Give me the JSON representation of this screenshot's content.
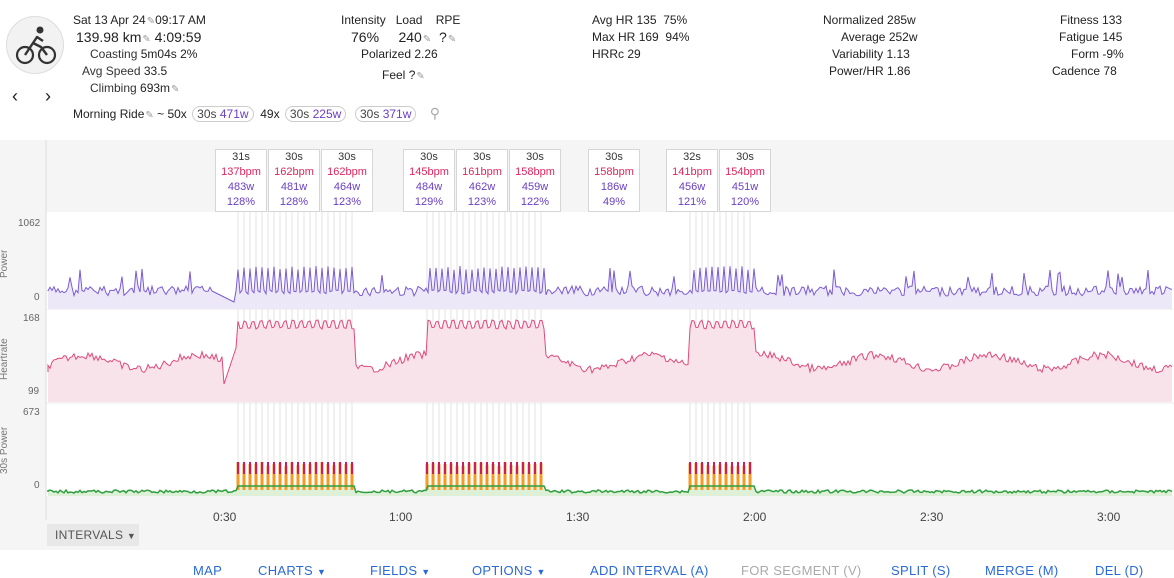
{
  "activity": {
    "date": "Sat 13 Apr 24",
    "time": "09:17 AM",
    "distance": "139.98 km",
    "duration": "4:09:59",
    "coasting_label": "Coasting",
    "coasting_value": "5m04s",
    "coasting_pct": "2%",
    "avg_speed_label": "Avg Speed",
    "avg_speed_value": "33.5",
    "climbing_label": "Climbing",
    "climbing_value": "693m",
    "name": "Morning Ride",
    "summary_prefix": "~ 50x",
    "summary_tag1_dur": "30s",
    "summary_tag1_w": "471w",
    "summary_mid": "49x",
    "summary_tag2_dur": "30s",
    "summary_tag2_w": "225w",
    "summary_tag3_dur": "30s",
    "summary_tag3_w": "371w"
  },
  "load": {
    "intensity_label": "Intensity",
    "load_label": "Load",
    "rpe_label": "RPE",
    "intensity_value": "76%",
    "load_value": "240",
    "rpe_value": "?",
    "polarized_label": "Polarized",
    "polarized_value": "2.26",
    "feel_label": "Feel",
    "feel_value": "?"
  },
  "hr": {
    "avg_label": "Avg HR",
    "avg_value": "135",
    "avg_pct": "75%",
    "max_label": "Max HR",
    "max_value": "169",
    "max_pct": "94%",
    "hrrc_label": "HRRc",
    "hrrc_value": "29"
  },
  "power": {
    "normalized_label": "Normalized",
    "normalized_value": "285w",
    "average_label": "Average",
    "average_value": "252w",
    "variability_label": "Variability",
    "variability_value": "1.13",
    "powerhr_label": "Power/HR",
    "powerhr_value": "1.86"
  },
  "fitness": {
    "fitness_label": "Fitness",
    "fitness_value": "133",
    "fatigue_label": "Fatigue",
    "fatigue_value": "145",
    "form_label": "Form",
    "form_value": "-9%",
    "cadence_label": "Cadence",
    "cadence_value": "78"
  },
  "interval_popups": [
    {
      "dur": "31s",
      "hr": "137bpm",
      "w": "483w",
      "pct": "128%"
    },
    {
      "dur": "30s",
      "hr": "162bpm",
      "w": "481w",
      "pct": "128%"
    },
    {
      "dur": "30s",
      "hr": "162bpm",
      "w": "464w",
      "pct": "123%"
    },
    {
      "dur": "30s",
      "hr": "145bpm",
      "w": "484w",
      "pct": "129%"
    },
    {
      "dur": "30s",
      "hr": "161bpm",
      "w": "462w",
      "pct": "123%"
    },
    {
      "dur": "30s",
      "hr": "158bpm",
      "w": "459w",
      "pct": "122%"
    },
    {
      "dur": "30s",
      "hr": "158bpm",
      "w": "186w",
      "pct": "49%"
    },
    {
      "dur": "32s",
      "hr": "141bpm",
      "w": "456w",
      "pct": "121%"
    },
    {
      "dur": "30s",
      "hr": "154bpm",
      "w": "451w",
      "pct": "120%"
    }
  ],
  "charts": {
    "power_label": "Power",
    "power_max": "1062",
    "power_min": "0",
    "hr_label": "Heartrate",
    "hr_max": "168",
    "hr_min": "99",
    "p30_label": "30s Power",
    "p30_max": "673",
    "p30_min": "0",
    "x_ticks": [
      "0:30",
      "1:00",
      "1:30",
      "2:00",
      "2:30",
      "3:00"
    ],
    "colors": {
      "power": "#7b5bd6",
      "hr": "#e04a7a",
      "p30_green": "#2e9e3e",
      "p30_orange": "#f59a22"
    }
  },
  "intervals_label": "INTERVALS",
  "toolbar": {
    "map": "MAP",
    "charts": "CHARTS",
    "fields": "FIELDS",
    "options": "OPTIONS",
    "add_interval": "ADD INTERVAL (A)",
    "for_segment": "FOR SEGMENT (V)",
    "split": "SPLIT (S)",
    "merge": "MERGE (M)",
    "del": "DEL (D)"
  }
}
